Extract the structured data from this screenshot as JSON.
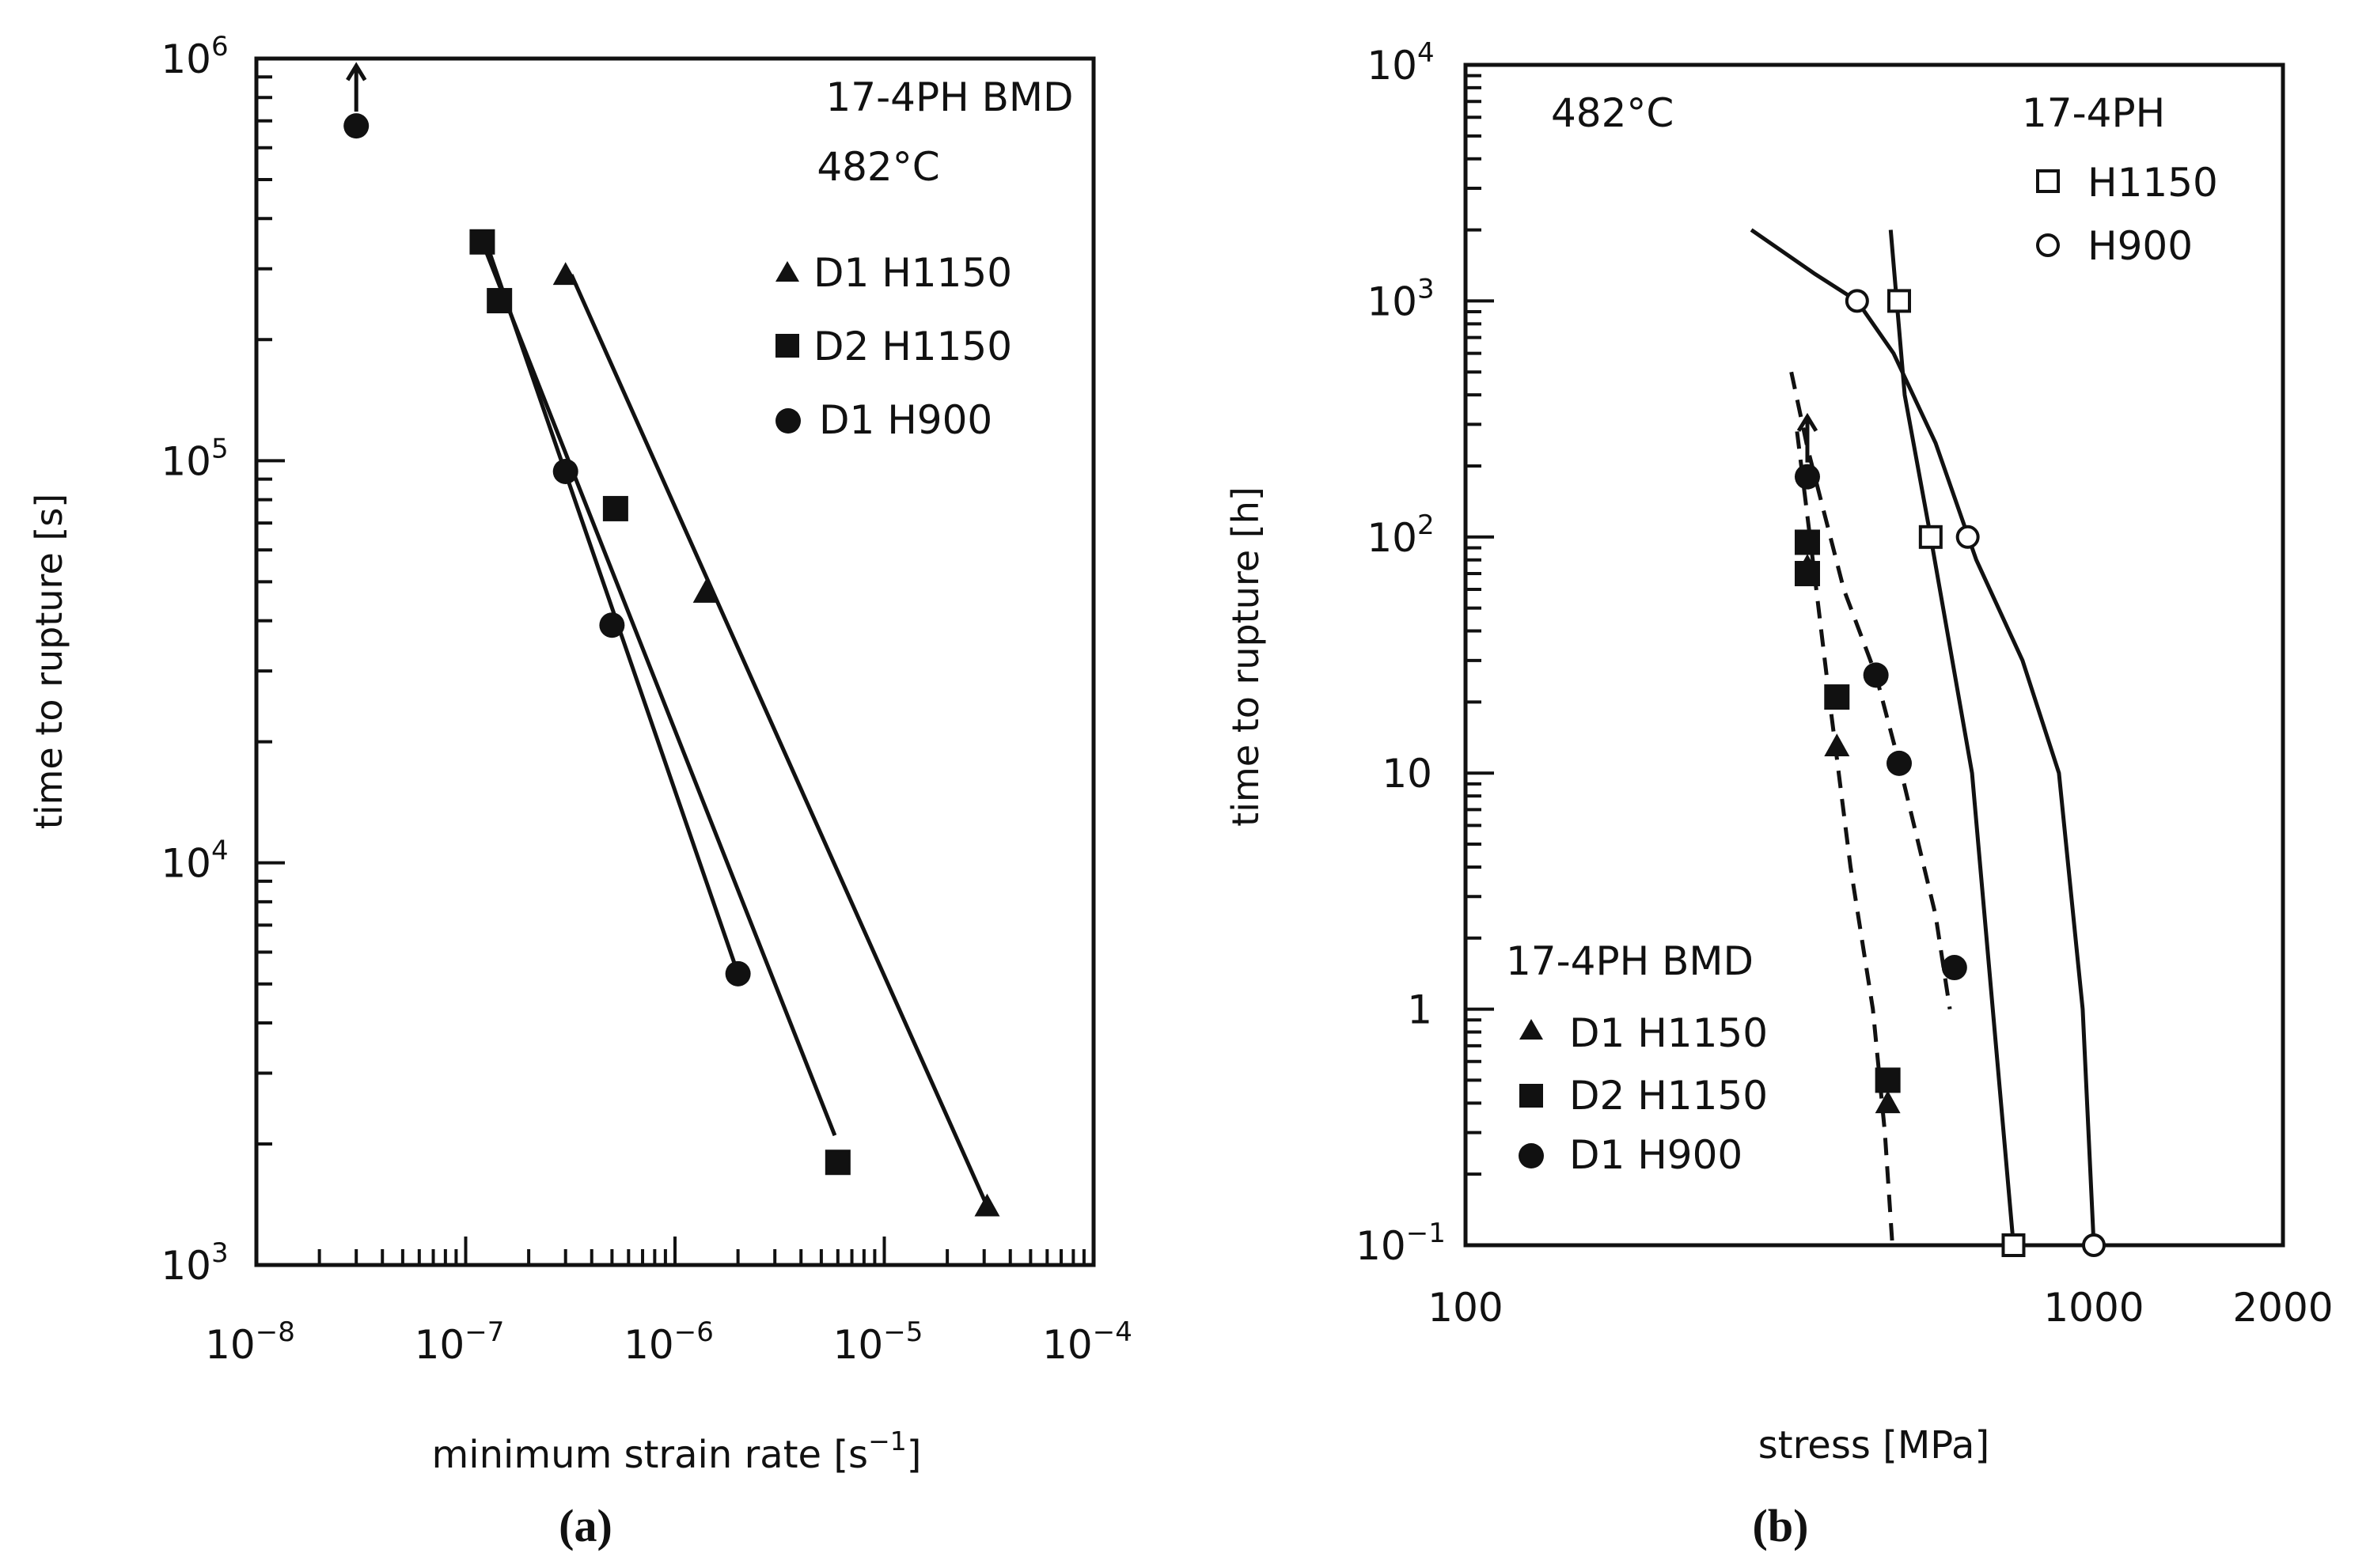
{
  "chart_data": [
    {
      "id": "a",
      "type": "scatter",
      "caption_letter": "a",
      "title": "17-4PH BMD",
      "subtitle": "482°C",
      "xlabel": "minimum strain rate [s",
      "xlabel_exp": "−1",
      "xlabel_end": "]",
      "ylabel": "time to rupture [s]",
      "xscale": "log",
      "yscale": "log",
      "xlim": [
        1e-08,
        0.0001
      ],
      "ylim": [
        1000,
        1000000
      ],
      "xticks": [
        {
          "value": 1e-08,
          "mant": "10",
          "exp": "−8"
        },
        {
          "value": 1e-07,
          "mant": "10",
          "exp": "−7"
        },
        {
          "value": 1e-06,
          "mant": "10",
          "exp": "−6"
        },
        {
          "value": 1e-05,
          "mant": "10",
          "exp": "−5"
        },
        {
          "value": 0.0001,
          "mant": "10",
          "exp": "−4"
        }
      ],
      "yticks": [
        {
          "value": 1000,
          "mant": "10",
          "exp": "3"
        },
        {
          "value": 10000,
          "mant": "10",
          "exp": "4"
        },
        {
          "value": 100000,
          "mant": "10",
          "exp": "5"
        },
        {
          "value": 1000000,
          "mant": "10",
          "exp": "6"
        }
      ],
      "legend": [
        {
          "label": "D1  H1150",
          "marker": "triangle"
        },
        {
          "label": "D2  H1150",
          "marker": "square"
        },
        {
          "label": "D1  H900",
          "marker": "circle"
        }
      ],
      "series": [
        {
          "name": "D1 H1150",
          "marker": "triangle",
          "points": [
            [
              3e-07,
              290000
            ],
            [
              1.4e-06,
              47000
            ],
            [
              3.1e-05,
              1400
            ]
          ]
        },
        {
          "name": "D2 H1150",
          "marker": "square",
          "points": [
            [
              1.2e-07,
              350000
            ],
            [
              1.45e-07,
              250000
            ],
            [
              5.2e-07,
              76000
            ],
            [
              6e-06,
              1800
            ]
          ]
        },
        {
          "name": "D1 H900",
          "marker": "circle",
          "points": [
            [
              3e-08,
              680000
            ],
            [
              3e-07,
              94000
            ],
            [
              5e-07,
              39000
            ],
            [
              2e-06,
              5300
            ]
          ]
        }
      ],
      "fit_lines": [
        {
          "name": "D1 H1150 fit",
          "points": [
            [
              3.2e-07,
              290000
            ],
            [
              3.1e-05,
              1400
            ]
          ]
        },
        {
          "name": "D2 H1150 fit",
          "points": [
            [
              1.2e-07,
              350000
            ],
            [
              5.8e-06,
              2100
            ]
          ]
        },
        {
          "name": "D1 H900 fit",
          "points": [
            [
              1.25e-07,
              350000
            ],
            [
              2e-06,
              5300
            ]
          ]
        }
      ],
      "runout_arrows": [
        {
          "at": [
            3e-08,
            680000
          ],
          "direction": "up"
        }
      ]
    },
    {
      "id": "b",
      "type": "scatter",
      "caption_letter": "b",
      "title": "482°C",
      "ref_title": "17-4PH",
      "bmd_title": "17-4PH BMD",
      "xlabel": "stress [MPa]",
      "ylabel": "time to rupture [h]",
      "xscale": "log",
      "yscale": "log",
      "xlim": [
        100,
        2000
      ],
      "ylim": [
        0.1,
        10000
      ],
      "xticks": [
        {
          "value": 100,
          "label": "100"
        },
        {
          "value": 1000,
          "label": "1000"
        },
        {
          "value": 2000,
          "label": "2000"
        }
      ],
      "yticks": [
        {
          "value": 0.1,
          "mant": "10",
          "exp": "−1"
        },
        {
          "value": 1,
          "label": "1"
        },
        {
          "value": 10,
          "label": "10"
        },
        {
          "value": 100,
          "mant": "10",
          "exp": "2"
        },
        {
          "value": 1000,
          "mant": "10",
          "exp": "3"
        },
        {
          "value": 10000,
          "mant": "10",
          "exp": "4"
        }
      ],
      "legend_ref": [
        {
          "label": "H1150",
          "marker": "open-square"
        },
        {
          "label": "H900",
          "marker": "open-circle"
        }
      ],
      "legend_bmd": [
        {
          "label": "D1  H1150",
          "marker": "triangle"
        },
        {
          "label": "D2  H1150",
          "marker": "square"
        },
        {
          "label": "D1  H900",
          "marker": "circle"
        }
      ],
      "series": [
        {
          "name": "D1 H1150",
          "marker": "triangle",
          "points": [
            [
              350,
              75
            ],
            [
              390,
              13
            ],
            [
              470,
              0.4
            ]
          ]
        },
        {
          "name": "D2 H1150",
          "marker": "square",
          "points": [
            [
              350,
              95
            ],
            [
              350,
              70
            ],
            [
              390,
              21
            ],
            [
              470,
              0.5
            ]
          ]
        },
        {
          "name": "D1 H900",
          "marker": "circle",
          "points": [
            [
              350,
              180
            ],
            [
              450,
              26
            ],
            [
              490,
              11
            ],
            [
              600,
              1.5
            ]
          ]
        },
        {
          "name": "17-4PH H1150",
          "marker": "open-square",
          "points": [
            [
              490,
              1000
            ],
            [
              550,
              100
            ],
            [
              745,
              0.1
            ]
          ]
        },
        {
          "name": "17-4PH H900",
          "marker": "open-circle",
          "points": [
            [
              420,
              1000
            ],
            [
              630,
              100
            ],
            [
              1000,
              0.1
            ]
          ]
        }
      ],
      "curves": [
        {
          "name": "H1150 ref",
          "style": "solid",
          "points": [
            [
              475,
              2000
            ],
            [
              500,
              400
            ],
            [
              550,
              100
            ],
            [
              640,
              10
            ],
            [
              745,
              0.1
            ]
          ]
        },
        {
          "name": "H900 ref",
          "style": "solid",
          "points": [
            [
              285,
              2000
            ],
            [
              360,
              1300
            ],
            [
              420,
              1000
            ],
            [
              480,
              600
            ],
            [
              560,
              250
            ],
            [
              650,
              80
            ],
            [
              770,
              30
            ],
            [
              880,
              10
            ],
            [
              960,
              1
            ],
            [
              1000,
              0.1
            ]
          ]
        },
        {
          "name": "D1 H900 BMD",
          "style": "dashed",
          "points": [
            [
              330,
              500
            ],
            [
              350,
              240
            ],
            [
              400,
              60
            ],
            [
              450,
              26
            ],
            [
              490,
              11
            ],
            [
              560,
              2.5
            ],
            [
              590,
              1
            ]
          ]
        },
        {
          "name": "D1/D2 H1150 BMD",
          "style": "dashed",
          "points": [
            [
              337,
              280
            ],
            [
              357,
              80
            ],
            [
              380,
              20
            ],
            [
              410,
              4
            ],
            [
              445,
              1
            ],
            [
              465,
              0.3
            ],
            [
              478,
              0.1
            ]
          ]
        }
      ],
      "runout_arrows": [
        {
          "at": [
            350,
            180
          ],
          "direction": "up"
        }
      ]
    }
  ]
}
